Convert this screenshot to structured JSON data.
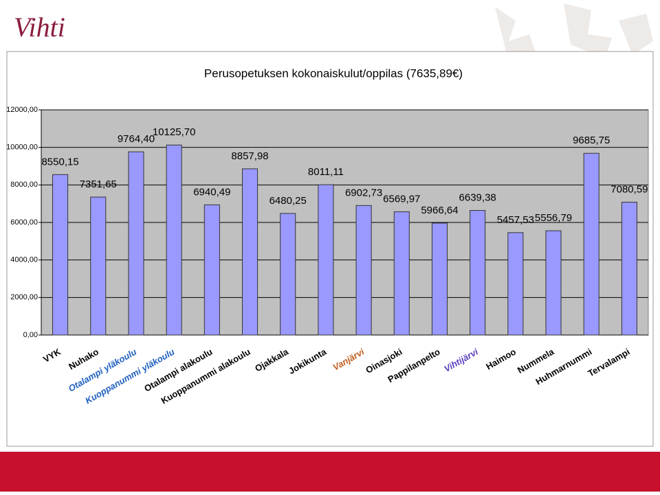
{
  "header": {
    "logo": "Vihti"
  },
  "chart_data": {
    "type": "bar",
    "title": "Perusopetuksen kokonaiskulut/oppilas (7635,89€)",
    "categories": [
      "VYK",
      "Nuhako",
      "Otalampi yläkoulu",
      "Kuoppanummi yläkoulu",
      "Otalampi alakoulu",
      "Kuoppanummi alakoulu",
      "Ojakkala",
      "Jokikunta",
      "Vanjärvi",
      "Oinasjoki",
      "Pappilanpelto",
      "Vihtijärvi",
      "Haimoo",
      "Nummela",
      "Huhmarnummi",
      "Tervalampi"
    ],
    "values": [
      8550.15,
      7351.65,
      9764.4,
      10125.7,
      6940.49,
      8857.98,
      6480.25,
      8011.11,
      6902.73,
      6569.97,
      5966.64,
      6639.38,
      5457.53,
      5556.79,
      9685.75,
      7080.59
    ],
    "value_labels": [
      "8550,15",
      "7351,65",
      "9764,40",
      "10125,70",
      "6940,49",
      "8857,98",
      "6480,25",
      "8011,11",
      "6902,73",
      "6569,97",
      "5966,64",
      "6639,38",
      "5457,53",
      "5556,79",
      "9685,75",
      "7080,59"
    ],
    "color": "#9999ff",
    "ylim": [
      0,
      12000
    ],
    "yticks": [
      {
        "value": 0,
        "label": "0,00"
      },
      {
        "value": 2000,
        "label": "2000,00"
      },
      {
        "value": 4000,
        "label": "4000,00"
      },
      {
        "value": 6000,
        "label": "6000,00"
      },
      {
        "value": 8000,
        "label": "8000,00"
      },
      {
        "value": 10000,
        "label": "10000,00"
      },
      {
        "value": 12000,
        "label": "12000,00"
      }
    ],
    "grid": true
  }
}
